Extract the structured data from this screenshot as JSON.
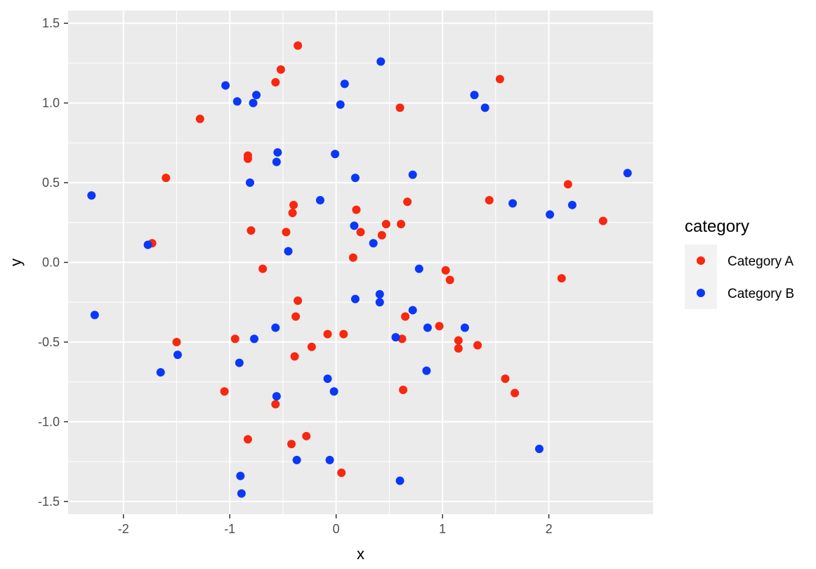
{
  "chart_data": {
    "type": "scatter",
    "xlabel": "x",
    "ylabel": "y",
    "xlim": [
      -2.52,
      2.98
    ],
    "ylim": [
      -1.58,
      1.58
    ],
    "x_ticks": [
      -2,
      -1,
      0,
      1,
      2
    ],
    "x_tick_labels": [
      "-2",
      "-1",
      "0",
      "1",
      "2"
    ],
    "y_ticks": [
      -1.5,
      -1.0,
      -0.5,
      0.0,
      0.5,
      1.0,
      1.5
    ],
    "y_tick_labels": [
      "-1.5",
      "-1.0",
      "-0.5",
      "0.0",
      "0.5",
      "1.0",
      "1.5"
    ],
    "grid": true,
    "panel_background": "#ebebeb",
    "legend": {
      "title": "category",
      "position": "right"
    },
    "series": [
      {
        "name": "Category A",
        "color": "#f8270e",
        "points": [
          [
            -0.36,
            1.36
          ],
          [
            -0.52,
            1.21
          ],
          [
            -0.57,
            1.13
          ],
          [
            -1.28,
            0.9
          ],
          [
            0.6,
            0.97
          ],
          [
            1.54,
            1.15
          ],
          [
            -0.83,
            0.67
          ],
          [
            -0.83,
            0.65
          ],
          [
            -1.6,
            0.53
          ],
          [
            -0.4,
            0.36
          ],
          [
            -0.41,
            0.31
          ],
          [
            0.19,
            0.33
          ],
          [
            0.67,
            0.38
          ],
          [
            1.44,
            0.39
          ],
          [
            2.18,
            0.49
          ],
          [
            2.51,
            0.26
          ],
          [
            -1.73,
            0.12
          ],
          [
            -0.8,
            0.2
          ],
          [
            -0.47,
            0.19
          ],
          [
            0.23,
            0.19
          ],
          [
            0.43,
            0.17
          ],
          [
            0.47,
            0.24
          ],
          [
            0.61,
            0.24
          ],
          [
            -0.69,
            -0.04
          ],
          [
            0.16,
            0.03
          ],
          [
            1.03,
            -0.05
          ],
          [
            1.07,
            -0.11
          ],
          [
            2.12,
            -0.1
          ],
          [
            -0.36,
            -0.24
          ],
          [
            -0.38,
            -0.34
          ],
          [
            0.65,
            -0.34
          ],
          [
            0.97,
            -0.4
          ],
          [
            -1.5,
            -0.5
          ],
          [
            -0.95,
            -0.48
          ],
          [
            -0.08,
            -0.45
          ],
          [
            0.07,
            -0.45
          ],
          [
            0.62,
            -0.48
          ],
          [
            1.15,
            -0.49
          ],
          [
            1.15,
            -0.54
          ],
          [
            1.33,
            -0.52
          ],
          [
            -0.39,
            -0.59
          ],
          [
            -0.23,
            -0.53
          ],
          [
            -1.05,
            -0.81
          ],
          [
            -0.57,
            -0.89
          ],
          [
            0.63,
            -0.8
          ],
          [
            1.59,
            -0.73
          ],
          [
            1.68,
            -0.82
          ],
          [
            -0.83,
            -1.11
          ],
          [
            -0.42,
            -1.14
          ],
          [
            -0.28,
            -1.09
          ],
          [
            0.05,
            -1.32
          ]
        ]
      },
      {
        "name": "Category B",
        "color": "#0a38f8",
        "points": [
          [
            0.42,
            1.26
          ],
          [
            -1.04,
            1.11
          ],
          [
            -0.93,
            1.01
          ],
          [
            -0.78,
            1.0
          ],
          [
            -0.75,
            1.05
          ],
          [
            0.08,
            1.12
          ],
          [
            0.04,
            0.99
          ],
          [
            1.3,
            1.05
          ],
          [
            1.4,
            0.97
          ],
          [
            -0.55,
            0.69
          ],
          [
            -0.56,
            0.63
          ],
          [
            -0.01,
            0.68
          ],
          [
            -0.81,
            0.5
          ],
          [
            0.18,
            0.53
          ],
          [
            0.72,
            0.55
          ],
          [
            -2.3,
            0.42
          ],
          [
            -0.15,
            0.39
          ],
          [
            1.66,
            0.37
          ],
          [
            2.01,
            0.3
          ],
          [
            2.22,
            0.36
          ],
          [
            2.74,
            0.56
          ],
          [
            -1.77,
            0.11
          ],
          [
            -0.45,
            0.07
          ],
          [
            0.17,
            0.23
          ],
          [
            0.35,
            0.12
          ],
          [
            0.78,
            -0.04
          ],
          [
            -2.27,
            -0.33
          ],
          [
            0.18,
            -0.23
          ],
          [
            0.41,
            -0.2
          ],
          [
            0.41,
            -0.25
          ],
          [
            0.72,
            -0.3
          ],
          [
            -0.57,
            -0.41
          ],
          [
            -0.77,
            -0.48
          ],
          [
            0.56,
            -0.47
          ],
          [
            0.86,
            -0.41
          ],
          [
            1.21,
            -0.41
          ],
          [
            -1.49,
            -0.58
          ],
          [
            -1.65,
            -0.69
          ],
          [
            -0.91,
            -0.63
          ],
          [
            0.85,
            -0.68
          ],
          [
            -0.08,
            -0.73
          ],
          [
            -0.02,
            -0.81
          ],
          [
            -0.56,
            -0.84
          ],
          [
            1.91,
            -1.17
          ],
          [
            -0.37,
            -1.24
          ],
          [
            -0.06,
            -1.24
          ],
          [
            0.6,
            -1.37
          ],
          [
            -0.9,
            -1.34
          ],
          [
            -0.89,
            -1.45
          ]
        ]
      }
    ]
  }
}
